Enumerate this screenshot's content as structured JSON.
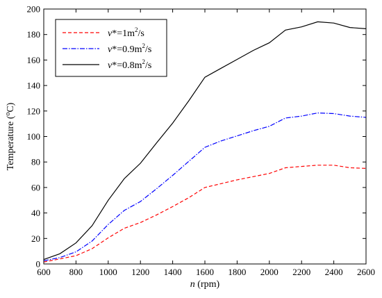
{
  "chart_data": {
    "type": "line",
    "title": "",
    "xlabel": {
      "var": "n",
      "unit": " (rpm)"
    },
    "ylabel": {
      "pre": "Temperature (",
      "sup": "o",
      "post": "C)"
    },
    "xlim": [
      600,
      2600
    ],
    "ylim": [
      0,
      200
    ],
    "x_ticks": [
      600,
      800,
      1000,
      1200,
      1400,
      1600,
      1800,
      2000,
      2200,
      2400,
      2600
    ],
    "y_ticks": [
      0,
      20,
      40,
      60,
      80,
      100,
      120,
      140,
      160,
      180,
      200
    ],
    "grid": false,
    "legend_position": "top-left",
    "x": [
      600,
      700,
      800,
      900,
      1000,
      1100,
      1200,
      1300,
      1400,
      1500,
      1600,
      1700,
      1800,
      1900,
      2000,
      2100,
      2200,
      2300,
      2400,
      2500,
      2600
    ],
    "series": [
      {
        "label_var": "v",
        "label_mid": "*=1m",
        "label_sup": "2",
        "label_end": "/s",
        "color": "#ff0000",
        "dash": "5,3",
        "values": [
          1.5,
          4,
          6.5,
          12,
          20.5,
          28,
          32.5,
          38.5,
          45,
          52,
          60,
          63,
          66,
          68.5,
          71,
          75.5,
          76.5,
          77.5,
          77.5,
          75.5,
          75
        ]
      },
      {
        "label_var": "v",
        "label_mid": "*=0.9m",
        "label_sup": "2",
        "label_end": "/s",
        "color": "#0000ff",
        "dash": "7,2,1.5,2",
        "values": [
          2.5,
          5,
          9.5,
          18,
          31,
          42,
          49,
          59,
          69.5,
          80.5,
          91.5,
          96.5,
          100.5,
          104.5,
          108,
          114.5,
          116,
          118.5,
          118,
          116,
          115
        ]
      },
      {
        "label_var": "v",
        "label_mid": "*=0.8m",
        "label_sup": "2",
        "label_end": "/s",
        "color": "#000000",
        "dash": "",
        "values": [
          3.5,
          8,
          16.5,
          30,
          50,
          67,
          79,
          95,
          110.5,
          128,
          146.5,
          153.5,
          160.5,
          167.5,
          173.5,
          183.5,
          186,
          190,
          189,
          185.5,
          184.5
        ]
      }
    ]
  }
}
